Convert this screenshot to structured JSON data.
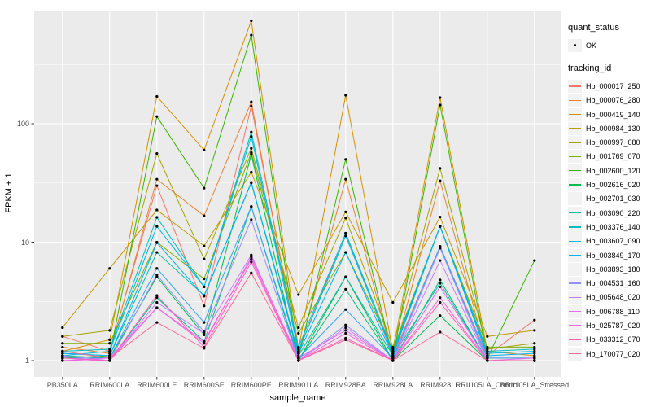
{
  "legend": {
    "quant_status_title": "quant_status",
    "quant_status_items": [
      {
        "label": "OK",
        "symbol": "black-point"
      }
    ],
    "tracking_id_title": "tracking_id"
  },
  "chart_data": {
    "type": "line",
    "title": "",
    "xlabel": "sample_name",
    "ylabel": "FPKM + 1",
    "y_scale": "log10",
    "ylim": [
      1,
      740
    ],
    "y_ticks": [
      1,
      10,
      100
    ],
    "y_tick_labels": [
      "1",
      "10",
      "100"
    ],
    "grid": "major-and-minor",
    "legend_position": "right",
    "panel_bg": "#EBEBEB",
    "grid_color": "#FFFFFF",
    "axis_text_color": "#4D4D4D",
    "point_color": "#000000",
    "categories": [
      "PB350LA",
      "RRIM600LA",
      "RRIM600LE",
      "RRIM600SE",
      "RRIM600PE",
      "RRIM901LA",
      "RRIM928BA",
      "RRIM928LA",
      "RRIM928LE",
      "RRII105LA_Control",
      "RRII105LA_Stressed"
    ],
    "series": [
      {
        "name": "Hb_000017_250",
        "color": "#F8766D",
        "values": [
          1.6,
          1.2,
          30,
          2.9,
          141,
          1.2,
          11.9,
          1.1,
          9.2,
          1.1,
          2.2
        ]
      },
      {
        "name": "Hb_000076_280",
        "color": "#EA8331",
        "values": [
          1.3,
          1.15,
          34,
          16.7,
          153,
          1.15,
          34,
          1.05,
          33,
          1.05,
          1.05
        ]
      },
      {
        "name": "Hb_000419_140",
        "color": "#D89000",
        "values": [
          1.2,
          1.5,
          170,
          60,
          740,
          1.25,
          174,
          1.2,
          166,
          1.2,
          1.1
        ]
      },
      {
        "name": "Hb_000984_130",
        "color": "#C09B00",
        "values": [
          1.9,
          6.0,
          18.7,
          9.3,
          39,
          3.6,
          18,
          3.1,
          16.3,
          1.6,
          1.8
        ]
      },
      {
        "name": "Hb_000997_080",
        "color": "#A3A500",
        "values": [
          1.6,
          1.8,
          56,
          7.2,
          62,
          1.9,
          16,
          1.3,
          42,
          1.25,
          1.4
        ]
      },
      {
        "name": "Hb_001769_070",
        "color": "#7CAE00",
        "values": [
          1.4,
          1.4,
          10,
          4.9,
          57,
          1.7,
          8.2,
          1.25,
          13.6,
          1.3,
          1.3
        ]
      },
      {
        "name": "Hb_002600_120",
        "color": "#39B600",
        "values": [
          1.05,
          1.1,
          115,
          28.6,
          560,
          1.05,
          50,
          1.05,
          144,
          1.05,
          7.0
        ]
      },
      {
        "name": "Hb_002616_020",
        "color": "#00BB4E",
        "values": [
          1.1,
          1.05,
          5.1,
          1.65,
          55,
          1.0,
          5.1,
          1.0,
          2.4,
          1.0,
          1.0
        ]
      },
      {
        "name": "Hb_002701_030",
        "color": "#00BF7D",
        "values": [
          1.0,
          1.0,
          3.4,
          1.45,
          20,
          1.0,
          4.0,
          1.0,
          4.8,
          1.0,
          1.0
        ]
      },
      {
        "name": "Hb_003090_220",
        "color": "#00C1A3",
        "values": [
          1.15,
          1.1,
          8.2,
          3.55,
          31.6,
          1.1,
          5.1,
          1.1,
          4.5,
          1.0,
          1.0
        ]
      },
      {
        "name": "Hb_003376_140",
        "color": "#00BFC4",
        "values": [
          1.2,
          1.25,
          16.2,
          4.2,
          85,
          1.3,
          11.9,
          1.2,
          13.6,
          1.2,
          1.25
        ]
      },
      {
        "name": "Hb_003607_090",
        "color": "#00BAE0",
        "values": [
          1.1,
          1.2,
          13.6,
          4.2,
          78,
          1.2,
          11.3,
          1.15,
          13.6,
          1.15,
          1.2
        ]
      },
      {
        "name": "Hb_003849_170",
        "color": "#00B0F6",
        "values": [
          1.15,
          1.1,
          9.9,
          3.5,
          32,
          1.15,
          8.2,
          1.1,
          13.6,
          1.1,
          1.15
        ]
      },
      {
        "name": "Hb_003893_180",
        "color": "#35A2FF",
        "values": [
          1.05,
          1.05,
          6.0,
          2.1,
          20,
          1.05,
          2.7,
          1.05,
          9.2,
          1.05,
          1.05
        ]
      },
      {
        "name": "Hb_004531_160",
        "color": "#9590FF",
        "values": [
          1.1,
          1.0,
          5.3,
          1.75,
          15.5,
          1.0,
          2.0,
          1.0,
          8.9,
          1.0,
          1.0
        ]
      },
      {
        "name": "Hb_005648_020",
        "color": "#C77CFF",
        "values": [
          1.05,
          1.0,
          3.1,
          1.7,
          7.8,
          1.0,
          1.9,
          1.0,
          7.0,
          1.0,
          1.0
        ]
      },
      {
        "name": "Hb_006788_110",
        "color": "#E76BF3",
        "values": [
          1.0,
          1.05,
          2.8,
          1.4,
          7.5,
          1.05,
          1.8,
          1.0,
          4.2,
          1.0,
          1.05
        ]
      },
      {
        "name": "Hb_025787_020",
        "color": "#FA62DB",
        "values": [
          1.0,
          1.0,
          2.8,
          1.45,
          7.2,
          1.0,
          1.7,
          1.0,
          3.4,
          1.0,
          1.0
        ]
      },
      {
        "name": "Hb_033312_070",
        "color": "#FF62BC",
        "values": [
          1.05,
          1.0,
          3.55,
          1.3,
          6.8,
          1.0,
          1.55,
          1.0,
          3.1,
          1.0,
          1.0
        ]
      },
      {
        "name": "Hb_170077_020",
        "color": "#FF6A98",
        "values": [
          1.2,
          1.05,
          2.1,
          1.27,
          5.5,
          1.0,
          1.5,
          1.0,
          1.74,
          1.0,
          1.0
        ]
      }
    ]
  }
}
